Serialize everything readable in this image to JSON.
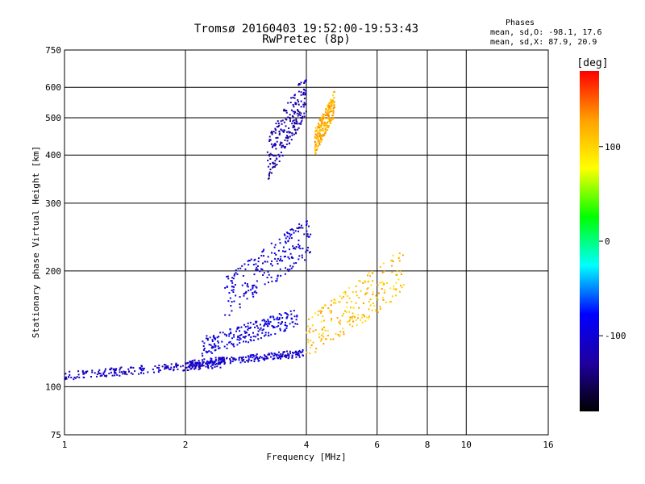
{
  "chart_data": {
    "type": "scatter",
    "title": "Tromsø 20160403 19:52:00-19:53:43",
    "subtitle": "RwPretec (8p)",
    "xlabel": "Frequency [MHz]",
    "ylabel": "Stationary phase Virtual Height [km]",
    "x_scale": "log",
    "y_scale": "log",
    "xlim": [
      1,
      16
    ],
    "ylim": [
      75,
      750
    ],
    "x_ticks": [
      1,
      2,
      4,
      6,
      8,
      10,
      16
    ],
    "x_tick_labels": [
      "1",
      "2",
      "4",
      "6",
      "8",
      "10",
      "16"
    ],
    "y_ticks": [
      75,
      100,
      200,
      300,
      400,
      500,
      600,
      750
    ],
    "y_tick_labels": [
      "75",
      "100",
      "200",
      "300",
      "400",
      "500",
      "600",
      "750"
    ],
    "grid": true,
    "stats": {
      "heading": "Phases",
      "line_o": "mean, sd,O: -98.1, 17.6",
      "line_x": "mean, sd,X:  87.9, 20.9"
    },
    "colorbar": {
      "label": "[deg]",
      "range": [
        -180,
        180
      ],
      "ticks": [
        100,
        0,
        -100
      ],
      "tick_labels": [
        "100",
        "0",
        "-100"
      ],
      "colors": [
        "#ff0000",
        "#ffa000",
        "#ffff00",
        "#00ff00",
        "#00ffff",
        "#0000ff",
        "#2000a0",
        "#000000"
      ]
    },
    "traces": [
      {
        "id": "e-region-trace",
        "x_range": [
          1.0,
          2.5
        ],
        "y_range": [
          104,
          118
        ],
        "phase": -110
      },
      {
        "id": "f1-lower-trace",
        "x_range": [
          2.0,
          4.0
        ],
        "y_range": [
          112,
          125
        ],
        "phase": -105
      },
      {
        "id": "f1-upper-trace",
        "x_range": [
          2.2,
          3.8
        ],
        "y_range": [
          120,
          160
        ],
        "phase": -95
      },
      {
        "id": "f2-o-trace",
        "x_range": [
          2.5,
          4.1
        ],
        "y_range": [
          150,
          280
        ],
        "phase": -100
      },
      {
        "id": "f2-x-trace",
        "x_range": [
          4.0,
          7.0
        ],
        "y_range": [
          115,
          230
        ],
        "phase": 110
      },
      {
        "id": "spread-f-trace",
        "x_range": [
          3.2,
          4.0
        ],
        "y_range": [
          340,
          660
        ],
        "phase": -120
      },
      {
        "id": "spread-f-x-trace",
        "x_range": [
          4.2,
          4.7
        ],
        "y_range": [
          400,
          590
        ],
        "phase": 120
      }
    ]
  }
}
